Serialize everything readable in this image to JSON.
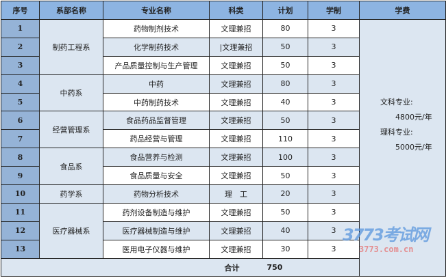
{
  "headers": [
    "序号",
    "系部名称",
    "专业名称",
    "科类",
    "计划",
    "学制",
    "学费"
  ],
  "rows": [
    {
      "seq": "1",
      "major": "药物制剂技术",
      "type": "文理兼招",
      "plan": "80",
      "years": "3"
    },
    {
      "seq": "2",
      "major": "化学制药技术",
      "type": "|文理兼招",
      "plan": "50",
      "years": "3"
    },
    {
      "seq": "3",
      "major": "产品质量控制与生产管理",
      "type": "文理兼招",
      "plan": "50",
      "years": "3"
    },
    {
      "seq": "4",
      "major": "中药",
      "type": "文理兼招",
      "plan": "80",
      "years": "3"
    },
    {
      "seq": "5",
      "major": "中药制药技术",
      "type": "文理兼招",
      "plan": "40",
      "years": "3"
    },
    {
      "seq": "6",
      "major": "食品药品监督管理",
      "type": "文理兼招",
      "plan": "50",
      "years": "3"
    },
    {
      "seq": "7",
      "major": "药品经营与管理",
      "type": "文理兼招",
      "plan": "110",
      "years": "3"
    },
    {
      "seq": "8",
      "major": "食品营养与检测",
      "type": "文理兼招",
      "plan": "100",
      "years": "3"
    },
    {
      "seq": "9",
      "major": "食品质量与安全",
      "type": "文理兼招",
      "plan": "50",
      "years": "3"
    },
    {
      "seq": "10",
      "major": "药物分析技术",
      "type": "理　工",
      "plan": "20",
      "years": "3"
    },
    {
      "seq": "11",
      "major": "药剂设备制造与维护",
      "type": "文理兼招",
      "plan": "50",
      "years": "3"
    },
    {
      "seq": "12",
      "major": "医疗器械制造与维护",
      "type": "文理兼招",
      "plan": "40",
      "years": "3"
    },
    {
      "seq": "13",
      "major": "医用电子仪器与维护",
      "type": "文理兼招",
      "plan": "30",
      "years": "3"
    }
  ],
  "departments": [
    "制药工程系",
    "中药系",
    "经营管理系",
    "食品系",
    "药学系",
    "医疗器械系"
  ],
  "fees": {
    "arts_label": "文科专业:",
    "arts_fee": "4800元/年",
    "science_label": "理科专业:",
    "science_fee": "5000元/年"
  },
  "total": {
    "label": "合计",
    "plan": "750"
  },
  "watermark": {
    "logo": "3773考试网",
    "url": "3773.com.cn"
  },
  "colors": {
    "header": "#8db4e2",
    "seq": "#95b3d7",
    "light": "#dce6f1"
  }
}
